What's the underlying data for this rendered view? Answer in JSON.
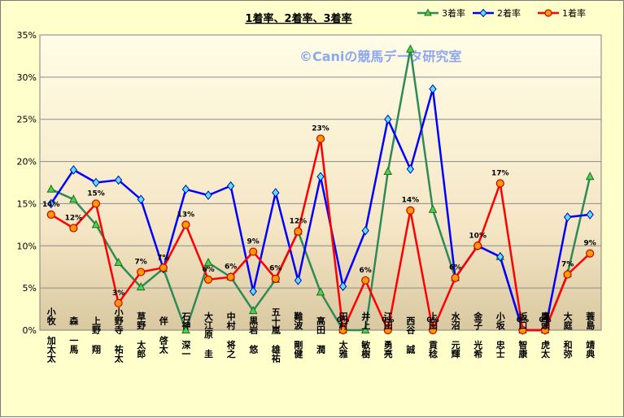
{
  "chart_data": {
    "type": "line",
    "title": "1着率、2着率、3着率",
    "watermark": "©Caniの競馬データ研究室",
    "ylim": [
      0,
      35
    ],
    "yticks": [
      "0%",
      "5%",
      "10%",
      "15%",
      "20%",
      "25%",
      "30%",
      "35%"
    ],
    "grid": true,
    "legend_position": "top-right",
    "categories": [
      "小牧 加太太",
      "森 一馬",
      "上野 翔",
      "小野寺 祐太",
      "草野 太郎",
      "伴 啓太",
      "石神 深一",
      "大江原 圭",
      "中村 将之",
      "黒岩 悠",
      "五十嵐 雄祐",
      "難波 剛健",
      "高田 潤",
      "田村 太雅",
      "井上 敏樹",
      "江田 勇亮",
      "西谷 誠",
      "上田 貢稔",
      "水沼 元輝",
      "金子 光希",
      "小坂 忠士",
      "坂口 智康",
      "鷹頭 虎太",
      "大庭 和弥",
      "蓑島 靖典"
    ],
    "series": [
      {
        "name": "3着率",
        "color": "#2e8b57",
        "marker": "triangle",
        "values": [
          16.7,
          15.5,
          12.5,
          8.0,
          5.1,
          7.3,
          0.0,
          8.0,
          6.3,
          2.3,
          6.0,
          11.7,
          4.5,
          0.0,
          0.0,
          18.8,
          33.3,
          14.3,
          6.2,
          10.0,
          8.7,
          0.0,
          0.0,
          6.7,
          18.2
        ]
      },
      {
        "name": "2着率",
        "color": "#0000ff",
        "marker": "diamond",
        "values": [
          15.0,
          19.0,
          17.5,
          17.8,
          15.5,
          7.3,
          16.7,
          16.0,
          17.1,
          4.6,
          16.3,
          5.9,
          18.2,
          5.2,
          11.8,
          25.0,
          19.1,
          28.6,
          6.2,
          10.0,
          8.7,
          0.0,
          0.0,
          13.4,
          13.7
        ]
      },
      {
        "name": "1着率",
        "color": "#ff0000",
        "marker": "circle",
        "values": [
          13.7,
          12.1,
          15.0,
          3.2,
          6.9,
          7.4,
          12.5,
          6.0,
          6.3,
          9.3,
          6.1,
          11.7,
          22.7,
          0.0,
          5.9,
          0.0,
          14.2,
          0.0,
          6.2,
          10.0,
          17.4,
          0.0,
          0.0,
          6.6,
          9.1
        ]
      }
    ],
    "data_labels_1st": [
      "14%",
      "12%",
      "15%",
      "3%",
      "7%",
      "7%",
      "13%",
      "6%",
      "6%",
      "9%",
      "6%",
      "12%",
      "23%",
      "0%",
      "6%",
      "0%",
      "14%",
      "0%",
      "6%",
      "10%",
      "17%",
      "0%",
      "0%",
      "7%",
      "9%"
    ]
  }
}
